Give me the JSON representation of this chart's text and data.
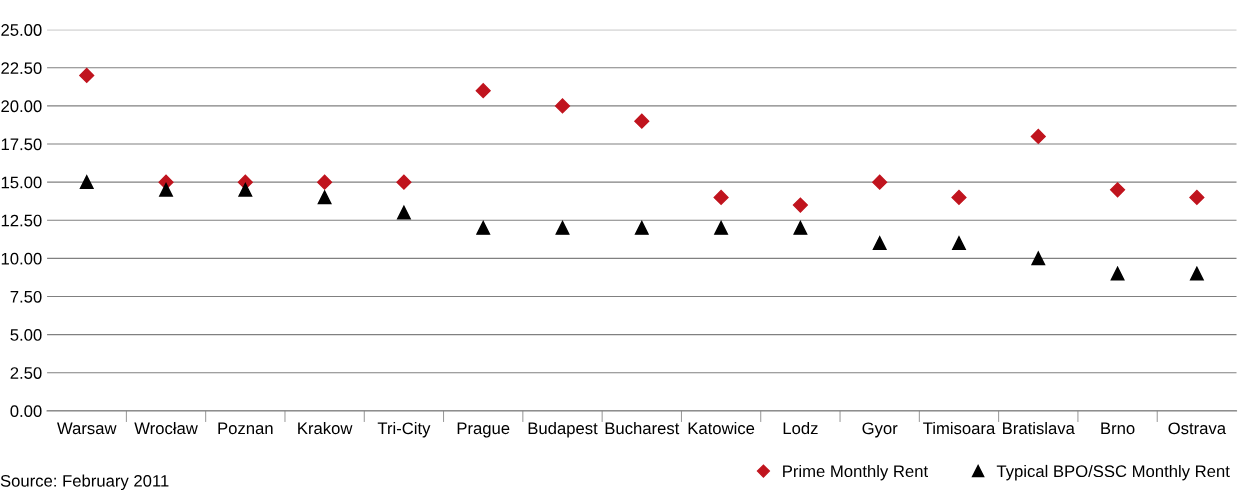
{
  "chart_data": {
    "type": "scatter",
    "categories": [
      "Warsaw",
      "Wrocław",
      "Poznan",
      "Krakow",
      "Tri-City",
      "Prague",
      "Budapest",
      "Bucharest",
      "Katowice",
      "Lodz",
      "Gyor",
      "Timisoara",
      "Bratislava",
      "Brno",
      "Ostrava"
    ],
    "series": [
      {
        "name": "Prime Monthly Rent",
        "color": "#c0141e",
        "marker": "diamond",
        "values": [
          22,
          15,
          15,
          15,
          15,
          21,
          20,
          19,
          14,
          13.5,
          15,
          14,
          18,
          14.5,
          14
        ]
      },
      {
        "name": "Typical BPO/SSC Monthly Rent",
        "color": "#000000",
        "marker": "triangle",
        "values": [
          15,
          14.5,
          14.5,
          14,
          13,
          12,
          12,
          12,
          12,
          12,
          11,
          11,
          10,
          9,
          9
        ]
      }
    ],
    "ylim": [
      0,
      25
    ],
    "yticks": [
      {
        "value": 0,
        "label": "0.00"
      },
      {
        "value": 2.5,
        "label": "2.50"
      },
      {
        "value": 5,
        "label": "5.00"
      },
      {
        "value": 7.5,
        "label": "7.50"
      },
      {
        "value": 10,
        "label": "10.00"
      },
      {
        "value": 12.5,
        "label": "12.50"
      },
      {
        "value": 15,
        "label": "15.00"
      },
      {
        "value": 17.5,
        "label": "17.50"
      },
      {
        "value": 20,
        "label": "20.00"
      },
      {
        "value": 22.5,
        "label": "22.50"
      },
      {
        "value": 25,
        "label": "25.00"
      }
    ],
    "grid": "y",
    "legend": "bottom right",
    "annotations": [
      "Source: February 2011"
    ]
  }
}
